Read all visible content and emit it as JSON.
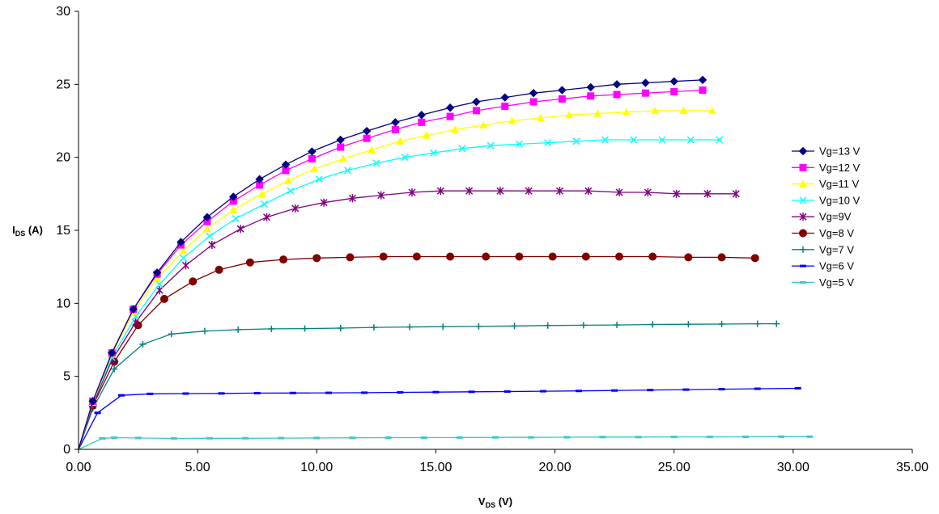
{
  "chart_data": {
    "type": "line",
    "title": "",
    "xlabel": {
      "main": "V",
      "sub": "DS",
      "rest": " (V)"
    },
    "ylabel": {
      "main": "I",
      "sub": "DS",
      "rest": " (A)"
    },
    "xlim": [
      0,
      35
    ],
    "ylim": [
      0,
      30
    ],
    "x_ticks": [
      "0.00",
      "5.00",
      "10.00",
      "15.00",
      "20.00",
      "25.00",
      "30.00",
      "35.00"
    ],
    "y_ticks": [
      "0",
      "5",
      "10",
      "15",
      "20",
      "25",
      "30"
    ],
    "grid": false,
    "legend_position": "right",
    "series": [
      {
        "name": "Vg=13 V",
        "color": "#000080",
        "marker": "diamond",
        "x": [
          0,
          0.6,
          1.4,
          2.3,
          3.3,
          4.3,
          5.4,
          6.5,
          7.6,
          8.7,
          9.8,
          11.0,
          12.1,
          13.3,
          14.4,
          15.6,
          16.7,
          17.9,
          19.1,
          20.3,
          21.5,
          22.6,
          23.8,
          25.0,
          26.2
        ],
        "y": [
          0,
          3.3,
          6.6,
          9.6,
          12.1,
          14.2,
          15.9,
          17.3,
          18.5,
          19.5,
          20.4,
          21.2,
          21.8,
          22.4,
          22.9,
          23.4,
          23.8,
          24.1,
          24.4,
          24.6,
          24.8,
          25.0,
          25.1,
          25.2,
          25.3
        ]
      },
      {
        "name": "Vg=12 V",
        "color": "#FF00FF",
        "marker": "square",
        "x": [
          0,
          0.6,
          1.4,
          2.3,
          3.3,
          4.3,
          5.4,
          6.5,
          7.6,
          8.7,
          9.8,
          11.0,
          12.1,
          13.3,
          14.4,
          15.6,
          16.7,
          17.9,
          19.1,
          20.3,
          21.5,
          22.6,
          23.8,
          25.0,
          26.2
        ],
        "y": [
          0,
          3.3,
          6.6,
          9.6,
          12.0,
          14.0,
          15.6,
          17.0,
          18.1,
          19.1,
          19.9,
          20.7,
          21.3,
          21.9,
          22.4,
          22.8,
          23.2,
          23.5,
          23.8,
          24.0,
          24.2,
          24.3,
          24.4,
          24.5,
          24.6
        ]
      },
      {
        "name": "Vg=11 V",
        "color": "#FFFF00",
        "marker": "triangle",
        "x": [
          0,
          0.6,
          1.4,
          2.3,
          3.3,
          4.4,
          5.4,
          6.5,
          7.7,
          8.8,
          9.9,
          11.1,
          12.3,
          13.5,
          14.6,
          15.8,
          17.0,
          18.2,
          19.4,
          20.6,
          21.8,
          23.0,
          24.2,
          25.4,
          26.6
        ],
        "y": [
          0,
          3.2,
          6.5,
          9.4,
          11.7,
          13.6,
          15.1,
          16.4,
          17.5,
          18.4,
          19.2,
          19.9,
          20.5,
          21.1,
          21.5,
          21.9,
          22.2,
          22.5,
          22.7,
          22.9,
          23.0,
          23.1,
          23.2,
          23.2,
          23.2
        ]
      },
      {
        "name": "Vg=10 V",
        "color": "#00FFFF",
        "marker": "x",
        "x": [
          0,
          0.6,
          1.4,
          2.4,
          3.4,
          4.4,
          5.5,
          6.6,
          7.8,
          8.9,
          10.1,
          11.3,
          12.5,
          13.7,
          14.9,
          16.1,
          17.3,
          18.5,
          19.7,
          20.9,
          22.1,
          23.3,
          24.5,
          25.7,
          26.9
        ],
        "y": [
          0,
          3.2,
          6.3,
          9.1,
          11.3,
          13.1,
          14.6,
          15.8,
          16.8,
          17.7,
          18.5,
          19.1,
          19.6,
          20.0,
          20.3,
          20.6,
          20.8,
          20.9,
          21.0,
          21.1,
          21.2,
          21.2,
          21.2,
          21.2,
          21.2
        ]
      },
      {
        "name": "Vg=9V",
        "color": "#800080",
        "marker": "asterisk",
        "x": [
          0,
          0.6,
          1.4,
          2.4,
          3.4,
          4.5,
          5.6,
          6.8,
          7.9,
          9.1,
          10.3,
          11.5,
          12.7,
          14.0,
          15.2,
          16.4,
          17.7,
          18.9,
          20.2,
          21.4,
          22.7,
          23.9,
          25.1,
          26.4,
          27.6
        ],
        "y": [
          0,
          3.1,
          6.1,
          8.7,
          10.9,
          12.6,
          14.0,
          15.1,
          15.9,
          16.5,
          16.9,
          17.2,
          17.4,
          17.6,
          17.7,
          17.7,
          17.7,
          17.7,
          17.7,
          17.7,
          17.6,
          17.6,
          17.5,
          17.5,
          17.5
        ]
      },
      {
        "name": "Vg=8 V",
        "color": "#800000",
        "marker": "circle",
        "x": [
          0,
          0.6,
          1.5,
          2.5,
          3.6,
          4.8,
          5.9,
          7.2,
          8.6,
          10.0,
          11.4,
          12.8,
          14.2,
          15.6,
          17.1,
          18.5,
          19.9,
          21.3,
          22.7,
          24.1,
          25.6,
          27.0,
          28.4
        ],
        "y": [
          0,
          3.0,
          6.0,
          8.5,
          10.3,
          11.5,
          12.3,
          12.8,
          13.0,
          13.1,
          13.15,
          13.2,
          13.2,
          13.2,
          13.2,
          13.2,
          13.2,
          13.2,
          13.2,
          13.2,
          13.15,
          13.15,
          13.1
        ]
      },
      {
        "name": "Vg=7 V",
        "color": "#008080",
        "marker": "plus",
        "x": [
          0,
          0.6,
          1.5,
          2.7,
          3.9,
          5.3,
          6.7,
          8.1,
          9.5,
          11.0,
          12.4,
          13.9,
          15.3,
          16.8,
          18.3,
          19.7,
          21.2,
          22.6,
          24.1,
          25.6,
          27.0,
          28.5,
          29.3
        ],
        "y": [
          0,
          2.8,
          5.5,
          7.2,
          7.9,
          8.1,
          8.2,
          8.25,
          8.27,
          8.3,
          8.35,
          8.38,
          8.4,
          8.42,
          8.45,
          8.48,
          8.5,
          8.52,
          8.55,
          8.57,
          8.58,
          8.6,
          8.6
        ]
      },
      {
        "name": "Vg=6 V",
        "color": "#0000FF",
        "marker": "dash",
        "x": [
          0,
          0.8,
          1.8,
          3.0,
          4.5,
          6.0,
          7.5,
          9.0,
          10.5,
          12.0,
          13.5,
          15.0,
          16.5,
          18.0,
          19.5,
          21.0,
          22.5,
          24.0,
          25.5,
          27.0,
          28.5,
          30.2
        ],
        "y": [
          0,
          2.5,
          3.7,
          3.8,
          3.82,
          3.83,
          3.85,
          3.86,
          3.87,
          3.88,
          3.9,
          3.92,
          3.94,
          3.96,
          3.98,
          4.0,
          4.03,
          4.06,
          4.09,
          4.12,
          4.15,
          4.18
        ]
      },
      {
        "name": "Vg=5 V",
        "color": "#33CCCC",
        "marker": "dash",
        "x": [
          0,
          1.0,
          1.5,
          2.5,
          4.0,
          5.5,
          7.0,
          8.5,
          10.0,
          11.5,
          13.0,
          14.5,
          16.0,
          17.5,
          19.0,
          20.5,
          22.0,
          23.5,
          25.0,
          26.5,
          28.0,
          29.5,
          30.7
        ],
        "y": [
          0,
          0.75,
          0.8,
          0.78,
          0.75,
          0.76,
          0.76,
          0.77,
          0.78,
          0.79,
          0.8,
          0.8,
          0.81,
          0.82,
          0.82,
          0.83,
          0.84,
          0.84,
          0.85,
          0.85,
          0.86,
          0.87,
          0.87
        ]
      }
    ]
  }
}
